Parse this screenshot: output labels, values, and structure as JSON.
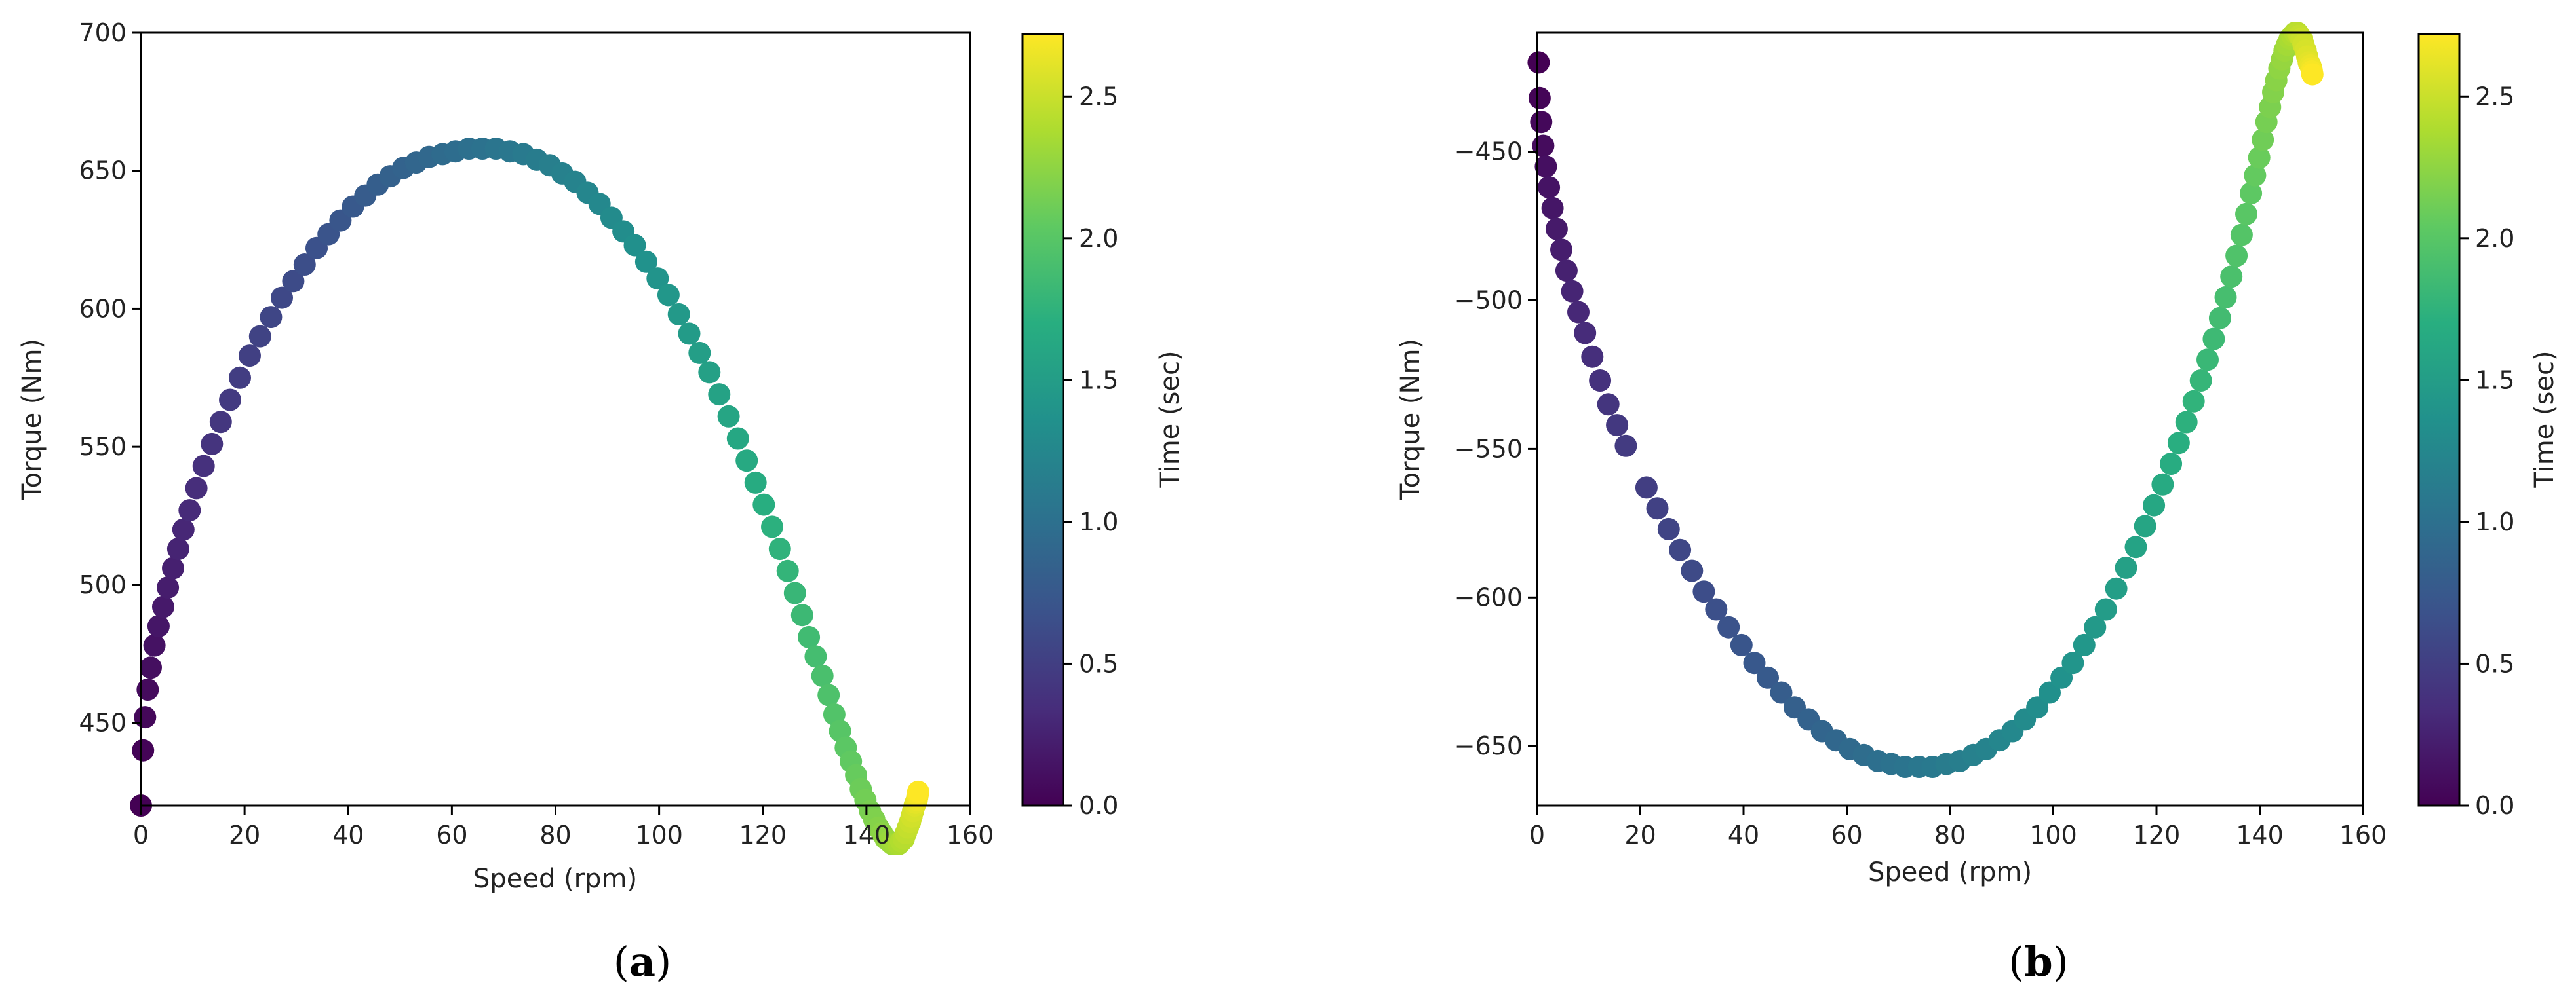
{
  "chart_data": [
    {
      "type": "scatter",
      "panel_label": "a",
      "xlabel": "Speed (rpm)",
      "ylabel": "Torque (Nm)",
      "xlim": [
        0,
        160
      ],
      "ylim": [
        420,
        700
      ],
      "xticks": [
        0,
        20,
        40,
        60,
        80,
        100,
        120,
        140,
        160
      ],
      "yticks": [
        450,
        500,
        550,
        600,
        650,
        700
      ],
      "grid": false,
      "legend": "none",
      "colormap": "viridis",
      "colorbar": {
        "label": "Time (sec)",
        "range": [
          0,
          2.72
        ],
        "ticks": [
          0.0,
          0.5,
          1.0,
          1.5,
          2.0,
          2.5
        ]
      },
      "series": [
        {
          "x": [
            0.0,
            0.4,
            0.8,
            1.3,
            1.9,
            2.6,
            3.4,
            4.3,
            5.2,
            6.2,
            7.2,
            8.2,
            9.4,
            10.7,
            12.1,
            13.7,
            15.4,
            17.2,
            19.1,
            21.0,
            23.0,
            25.1,
            27.2,
            29.4,
            31.6,
            33.9,
            36.2,
            38.5,
            40.9,
            43.3,
            45.7,
            48.1,
            50.6,
            53.1,
            55.6,
            58.2,
            60.7,
            63.3,
            65.9,
            68.5,
            71.2,
            73.8,
            76.4,
            78.9,
            81.3,
            83.8,
            86.2,
            88.5,
            90.8,
            93.1,
            95.3,
            97.5,
            99.7,
            101.8,
            103.8,
            105.8,
            107.8,
            109.7,
            111.6,
            113.4,
            115.2,
            116.9,
            118.6,
            120.2,
            121.8,
            123.3,
            124.8,
            126.2,
            127.6,
            128.9,
            130.2,
            131.5,
            132.7,
            133.8,
            134.9,
            136.0,
            137.0,
            138.0,
            138.9,
            139.8,
            140.7,
            141.5,
            142.3,
            143.0,
            143.7,
            144.4,
            145.0,
            145.6,
            146.2,
            146.7,
            147.2,
            147.6,
            148.0,
            148.4,
            148.7,
            149.0,
            149.3,
            149.5,
            149.7,
            149.8,
            149.9,
            150.0
          ],
          "y": [
            420,
            440,
            452,
            462,
            470,
            478,
            485,
            492,
            499,
            506,
            513,
            520,
            527,
            535,
            543,
            551,
            559,
            567,
            575,
            583,
            590,
            597,
            604,
            610,
            616,
            622,
            627,
            632,
            637,
            641,
            645,
            648,
            651,
            653,
            655,
            656,
            657,
            658,
            658,
            658,
            657,
            656,
            654,
            652,
            649,
            646,
            642,
            638,
            633,
            628,
            623,
            617,
            611,
            605,
            598,
            591,
            584,
            577,
            569,
            561,
            553,
            545,
            537,
            529,
            521,
            513,
            505,
            497,
            489,
            481,
            474,
            467,
            460,
            453,
            447,
            441,
            436,
            431,
            426,
            422,
            418,
            415,
            412,
            410,
            408,
            407,
            406,
            406,
            406,
            407,
            408,
            410,
            412,
            414,
            416,
            418,
            420,
            421,
            422,
            423,
            424,
            425
          ],
          "color_value": "time_sec"
        }
      ]
    },
    {
      "type": "scatter",
      "panel_label": "b",
      "xlabel": "Speed (rpm)",
      "ylabel": "Torque (Nm)",
      "xlim": [
        0,
        160
      ],
      "ylim": [
        -670,
        -410
      ],
      "xticks": [
        0,
        20,
        40,
        60,
        80,
        100,
        120,
        140,
        160
      ],
      "yticks": [
        -450,
        -500,
        -550,
        -600,
        -650
      ],
      "grid": false,
      "legend": "none",
      "colormap": "viridis",
      "colorbar": {
        "label": "Time (sec)",
        "range": [
          0,
          2.72
        ],
        "ticks": [
          0.0,
          0.5,
          1.0,
          1.5,
          2.0,
          2.5
        ]
      },
      "series": [
        {
          "x": [
            0.3,
            0.5,
            0.8,
            1.2,
            1.7,
            2.3,
            3.0,
            3.8,
            4.7,
            5.7,
            6.8,
            8.0,
            9.3,
            10.7,
            12.2,
            13.8,
            15.5,
            17.2,
            21.2,
            23.3,
            25.5,
            27.7,
            30.0,
            32.3,
            34.7,
            37.1,
            39.6,
            42.1,
            44.7,
            47.3,
            49.9,
            52.6,
            55.2,
            57.9,
            60.6,
            63.3,
            66.0,
            68.6,
            71.3,
            74.0,
            76.6,
            79.3,
            81.9,
            84.5,
            87.0,
            89.6,
            92.1,
            94.5,
            96.9,
            99.3,
            101.6,
            103.8,
            106.0,
            108.1,
            110.2,
            112.2,
            114.1,
            116.0,
            117.8,
            119.5,
            121.2,
            122.8,
            124.3,
            125.8,
            127.2,
            128.6,
            129.9,
            131.1,
            132.3,
            133.4,
            134.5,
            135.5,
            136.5,
            137.4,
            138.3,
            139.1,
            139.9,
            140.6,
            141.3,
            142.0,
            142.6,
            143.2,
            143.8,
            144.3,
            144.8,
            145.3,
            145.8,
            146.3,
            146.8,
            147.3,
            147.7,
            148.1,
            148.5,
            148.9,
            149.2,
            149.5,
            149.8,
            150.0,
            150.1,
            150.2
          ],
          "y": [
            -420,
            -432,
            -440,
            -448,
            -455,
            -462,
            -469,
            -476,
            -483,
            -490,
            -497,
            -504,
            -511,
            -519,
            -527,
            -535,
            -542,
            -549,
            -563,
            -570,
            -577,
            -584,
            -591,
            -598,
            -604,
            -610,
            -616,
            -622,
            -627,
            -632,
            -637,
            -641,
            -645,
            -648,
            -651,
            -653,
            -655,
            -656,
            -657,
            -657,
            -657,
            -656,
            -655,
            -653,
            -651,
            -648,
            -645,
            -641,
            -637,
            -632,
            -627,
            -622,
            -616,
            -610,
            -604,
            -597,
            -590,
            -583,
            -576,
            -569,
            -562,
            -555,
            -548,
            -541,
            -534,
            -527,
            -520,
            -513,
            -506,
            -499,
            -492,
            -485,
            -478,
            -471,
            -464,
            -458,
            -452,
            -446,
            -440,
            -435,
            -430,
            -426,
            -422,
            -419,
            -416,
            -414,
            -412,
            -411,
            -410,
            -410,
            -411,
            -412,
            -414,
            -416,
            -418,
            -420,
            -421,
            -422,
            -423,
            -424
          ],
          "color_value": "time_sec"
        }
      ]
    }
  ]
}
